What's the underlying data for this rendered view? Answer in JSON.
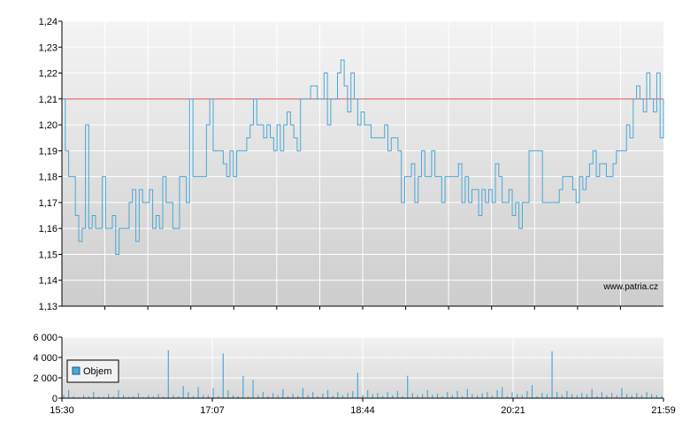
{
  "watermark": "www.patria.cz",
  "chart_data": [
    {
      "type": "line",
      "panel": "price",
      "ylim": [
        1.13,
        1.24
      ],
      "yticks": [
        "1,13",
        "1,14",
        "1,15",
        "1,16",
        "1,17",
        "1,18",
        "1,19",
        "1,20",
        "1,21",
        "1,22",
        "1,23",
        "1,24"
      ],
      "reference_line": 1.21,
      "colors": {
        "line": "#4aa8d8",
        "reference": "#e05050"
      },
      "series": [
        {
          "values": [
            1.21,
            1.19,
            1.18,
            1.18,
            1.165,
            1.155,
            1.16,
            1.2,
            1.16,
            1.165,
            1.16,
            1.16,
            1.18,
            1.16,
            1.16,
            1.165,
            1.15,
            1.16,
            1.16,
            1.16,
            1.17,
            1.175,
            1.155,
            1.175,
            1.17,
            1.17,
            1.175,
            1.16,
            1.165,
            1.16,
            1.18,
            1.17,
            1.17,
            1.16,
            1.16,
            1.18,
            1.18,
            1.17,
            1.21,
            1.18,
            1.18,
            1.18,
            1.18,
            1.2,
            1.21,
            1.19,
            1.19,
            1.19,
            1.185,
            1.18,
            1.19,
            1.18,
            1.19,
            1.19,
            1.19,
            1.195,
            1.2,
            1.21,
            1.2,
            1.2,
            1.195,
            1.2,
            1.195,
            1.19,
            1.2,
            1.19,
            1.2,
            1.205,
            1.2,
            1.195,
            1.19,
            1.21,
            1.21,
            1.21,
            1.215,
            1.215,
            1.21,
            1.21,
            1.22,
            1.2,
            1.21,
            1.21,
            1.22,
            1.225,
            1.215,
            1.205,
            1.22,
            1.21,
            1.2,
            1.205,
            1.2,
            1.2,
            1.195,
            1.195,
            1.195,
            1.195,
            1.2,
            1.19,
            1.195,
            1.195,
            1.19,
            1.17,
            1.18,
            1.18,
            1.185,
            1.17,
            1.18,
            1.19,
            1.18,
            1.18,
            1.19,
            1.18,
            1.18,
            1.17,
            1.18,
            1.18,
            1.18,
            1.18,
            1.185,
            1.17,
            1.18,
            1.17,
            1.175,
            1.175,
            1.165,
            1.175,
            1.17,
            1.175,
            1.17,
            1.185,
            1.18,
            1.17,
            1.17,
            1.175,
            1.165,
            1.17,
            1.16,
            1.17,
            1.17,
            1.19,
            1.19,
            1.19,
            1.19,
            1.17,
            1.17,
            1.17,
            1.17,
            1.17,
            1.175,
            1.18,
            1.18,
            1.18,
            1.175,
            1.17,
            1.18,
            1.175,
            1.18,
            1.185,
            1.19,
            1.18,
            1.185,
            1.185,
            1.18,
            1.18,
            1.185,
            1.19,
            1.19,
            1.19,
            1.2,
            1.195,
            1.21,
            1.215,
            1.21,
            1.205,
            1.22,
            1.21,
            1.205,
            1.22,
            1.195,
            1.21
          ]
        }
      ]
    },
    {
      "type": "bar",
      "panel": "volume",
      "ylim": [
        0,
        6000
      ],
      "yticks": [
        "0",
        "2 000",
        "4 000",
        "6 000"
      ],
      "xticks": [
        "15:30",
        "17:07",
        "18:44",
        "20:21",
        "21:59"
      ],
      "legend": {
        "label": "Objem",
        "placement": "top-left"
      },
      "colors": {
        "bar": "#4aa8d8"
      },
      "series": [
        {
          "name": "Objem",
          "values": [
            300,
            800,
            200,
            100,
            300,
            200,
            600,
            150,
            100,
            400,
            200,
            800,
            300,
            150,
            200,
            500,
            100,
            300,
            200,
            400,
            150,
            4700,
            300,
            200,
            1200,
            600,
            200,
            1100,
            300,
            300,
            1000,
            200,
            4400,
            800,
            300,
            200,
            2200,
            150,
            1800,
            300,
            600,
            200,
            500,
            300,
            900,
            200,
            400,
            250,
            1000,
            300,
            600,
            200,
            450,
            800,
            250,
            600,
            300,
            500,
            700,
            2500,
            300,
            800,
            400,
            500,
            250,
            600,
            300,
            700,
            200,
            2200,
            500,
            300,
            400,
            800,
            350,
            450,
            200,
            600,
            300,
            700,
            200,
            900,
            400,
            300,
            500,
            600,
            250,
            800,
            1100,
            200,
            600,
            400,
            300,
            700,
            1300,
            200,
            500,
            400,
            4600,
            600,
            300,
            700,
            400,
            300,
            500,
            400,
            900,
            200,
            600,
            300,
            500,
            300,
            1000,
            400,
            300,
            500,
            300,
            600,
            400,
            300,
            200
          ]
        }
      ]
    }
  ]
}
